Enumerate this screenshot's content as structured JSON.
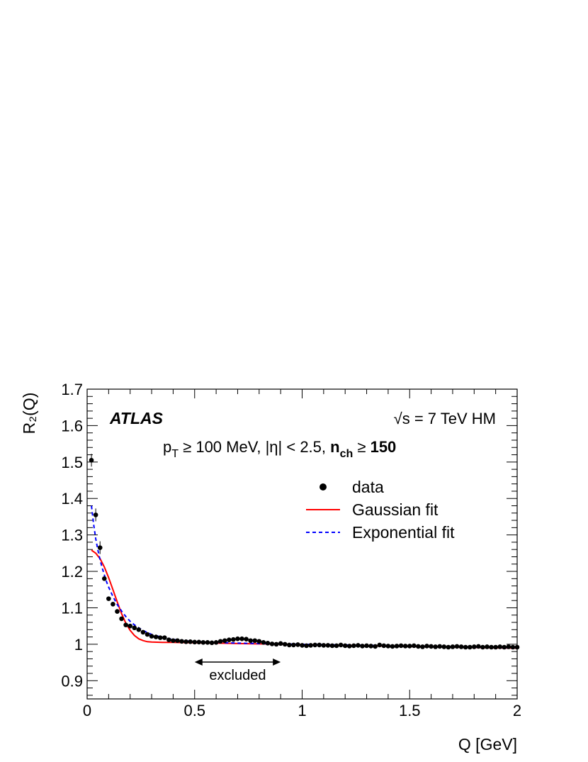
{
  "chart_data": {
    "type": "scatter",
    "title": "",
    "xlabel": "Q [GeV]",
    "ylabel": "R₂(Q)",
    "xlim": [
      0,
      2
    ],
    "ylim": [
      0.85,
      1.7
    ],
    "xticks": [
      "0",
      "0.5",
      "1",
      "1.5",
      "2"
    ],
    "yticks": [
      "0.9",
      "1",
      "1.1",
      "1.2",
      "1.3",
      "1.4",
      "1.5",
      "1.6",
      "1.7"
    ],
    "legend_position": "top-right",
    "annotations": {
      "experiment": "ATLAS",
      "energy": "√s = 7 TeV HM",
      "cuts_prefix": "p",
      "cuts_sub": "T",
      "cuts_mid": " ≥ 100 MeV, |η| < 2.5, ",
      "cuts_n": "n",
      "cuts_n_sub": "ch",
      "cuts_ge": " ≥ ",
      "cuts_value": "150",
      "excluded_label": "excluded",
      "excluded_range": [
        0.5,
        0.9
      ]
    },
    "series": [
      {
        "name": "data",
        "style": "markers",
        "color": "#000000",
        "x": [
          0.02,
          0.04,
          0.06,
          0.08,
          0.1,
          0.12,
          0.14,
          0.16,
          0.18,
          0.2,
          0.22,
          0.24,
          0.26,
          0.28,
          0.3,
          0.32,
          0.34,
          0.36,
          0.38,
          0.4,
          0.42,
          0.44,
          0.46,
          0.48,
          0.5,
          0.52,
          0.54,
          0.56,
          0.58,
          0.6,
          0.62,
          0.64,
          0.66,
          0.68,
          0.7,
          0.72,
          0.74,
          0.76,
          0.78,
          0.8,
          0.82,
          0.84,
          0.86,
          0.88,
          0.9,
          0.92,
          0.94,
          0.96,
          0.98,
          1.0,
          1.02,
          1.04,
          1.06,
          1.08,
          1.1,
          1.12,
          1.14,
          1.16,
          1.18,
          1.2,
          1.22,
          1.24,
          1.26,
          1.28,
          1.3,
          1.32,
          1.34,
          1.36,
          1.38,
          1.4,
          1.42,
          1.44,
          1.46,
          1.48,
          1.5,
          1.52,
          1.54,
          1.56,
          1.58,
          1.6,
          1.62,
          1.64,
          1.66,
          1.68,
          1.7,
          1.72,
          1.74,
          1.76,
          1.78,
          1.8,
          1.82,
          1.84,
          1.86,
          1.88,
          1.9,
          1.92,
          1.94,
          1.96,
          1.98,
          2.0
        ],
        "y": [
          1.505,
          1.355,
          1.265,
          1.18,
          1.125,
          1.11,
          1.09,
          1.07,
          1.053,
          1.05,
          1.045,
          1.04,
          1.033,
          1.027,
          1.022,
          1.02,
          1.018,
          1.018,
          1.012,
          1.01,
          1.01,
          1.008,
          1.007,
          1.007,
          1.006,
          1.006,
          1.005,
          1.005,
          1.004,
          1.005,
          1.008,
          1.01,
          1.012,
          1.013,
          1.015,
          1.015,
          1.014,
          1.01,
          1.01,
          1.008,
          1.005,
          1.003,
          1.001,
          1.0,
          1.002,
          1.0,
          0.998,
          0.998,
          0.999,
          0.997,
          0.996,
          0.997,
          0.998,
          0.998,
          0.997,
          0.997,
          0.996,
          0.996,
          0.998,
          0.996,
          0.995,
          0.996,
          0.997,
          0.995,
          0.996,
          0.995,
          0.994,
          0.998,
          0.996,
          0.995,
          0.994,
          0.995,
          0.996,
          0.995,
          0.995,
          0.996,
          0.994,
          0.993,
          0.995,
          0.994,
          0.993,
          0.994,
          0.993,
          0.992,
          0.993,
          0.994,
          0.993,
          0.992,
          0.992,
          0.993,
          0.994,
          0.992,
          0.993,
          0.992,
          0.992,
          0.993,
          0.992,
          0.993,
          0.992,
          0.992
        ]
      },
      {
        "name": "Gaussian fit",
        "style": "line",
        "color": "#ff0000",
        "x": [
          0.02,
          0.04,
          0.06,
          0.08,
          0.1,
          0.12,
          0.14,
          0.16,
          0.18,
          0.2,
          0.22,
          0.24,
          0.26,
          0.28,
          0.3,
          0.35,
          0.4,
          0.5,
          0.6,
          0.7,
          0.8,
          0.9,
          1.0,
          1.2,
          1.4,
          1.6,
          1.8,
          2.0
        ],
        "y": [
          1.258,
          1.25,
          1.235,
          1.212,
          1.183,
          1.15,
          1.116,
          1.084,
          1.058,
          1.038,
          1.024,
          1.015,
          1.01,
          1.007,
          1.006,
          1.005,
          1.005,
          1.004,
          1.003,
          1.002,
          1.001,
          1.0,
          0.999,
          0.997,
          0.995,
          0.993,
          0.991,
          0.989
        ]
      },
      {
        "name": "Exponential fit",
        "style": "dashed",
        "color": "#0000ff",
        "x": [
          0.02,
          0.03,
          0.04,
          0.05,
          0.06,
          0.07,
          0.08,
          0.09,
          0.1,
          0.12,
          0.14,
          0.16,
          0.18,
          0.2,
          0.22,
          0.24,
          0.26,
          0.28,
          0.3,
          0.35,
          0.4,
          0.5,
          0.6,
          0.7,
          0.8,
          0.9,
          1.0,
          1.2,
          1.4,
          1.6,
          1.8,
          2.0
        ],
        "y": [
          1.38,
          1.33,
          1.29,
          1.258,
          1.232,
          1.21,
          1.19,
          1.172,
          1.157,
          1.131,
          1.109,
          1.091,
          1.076,
          1.063,
          1.053,
          1.045,
          1.038,
          1.032,
          1.027,
          1.019,
          1.013,
          1.007,
          1.005,
          1.003,
          1.002,
          1.001,
          1.0,
          0.998,
          0.996,
          0.994,
          0.992,
          0.99
        ]
      }
    ]
  }
}
